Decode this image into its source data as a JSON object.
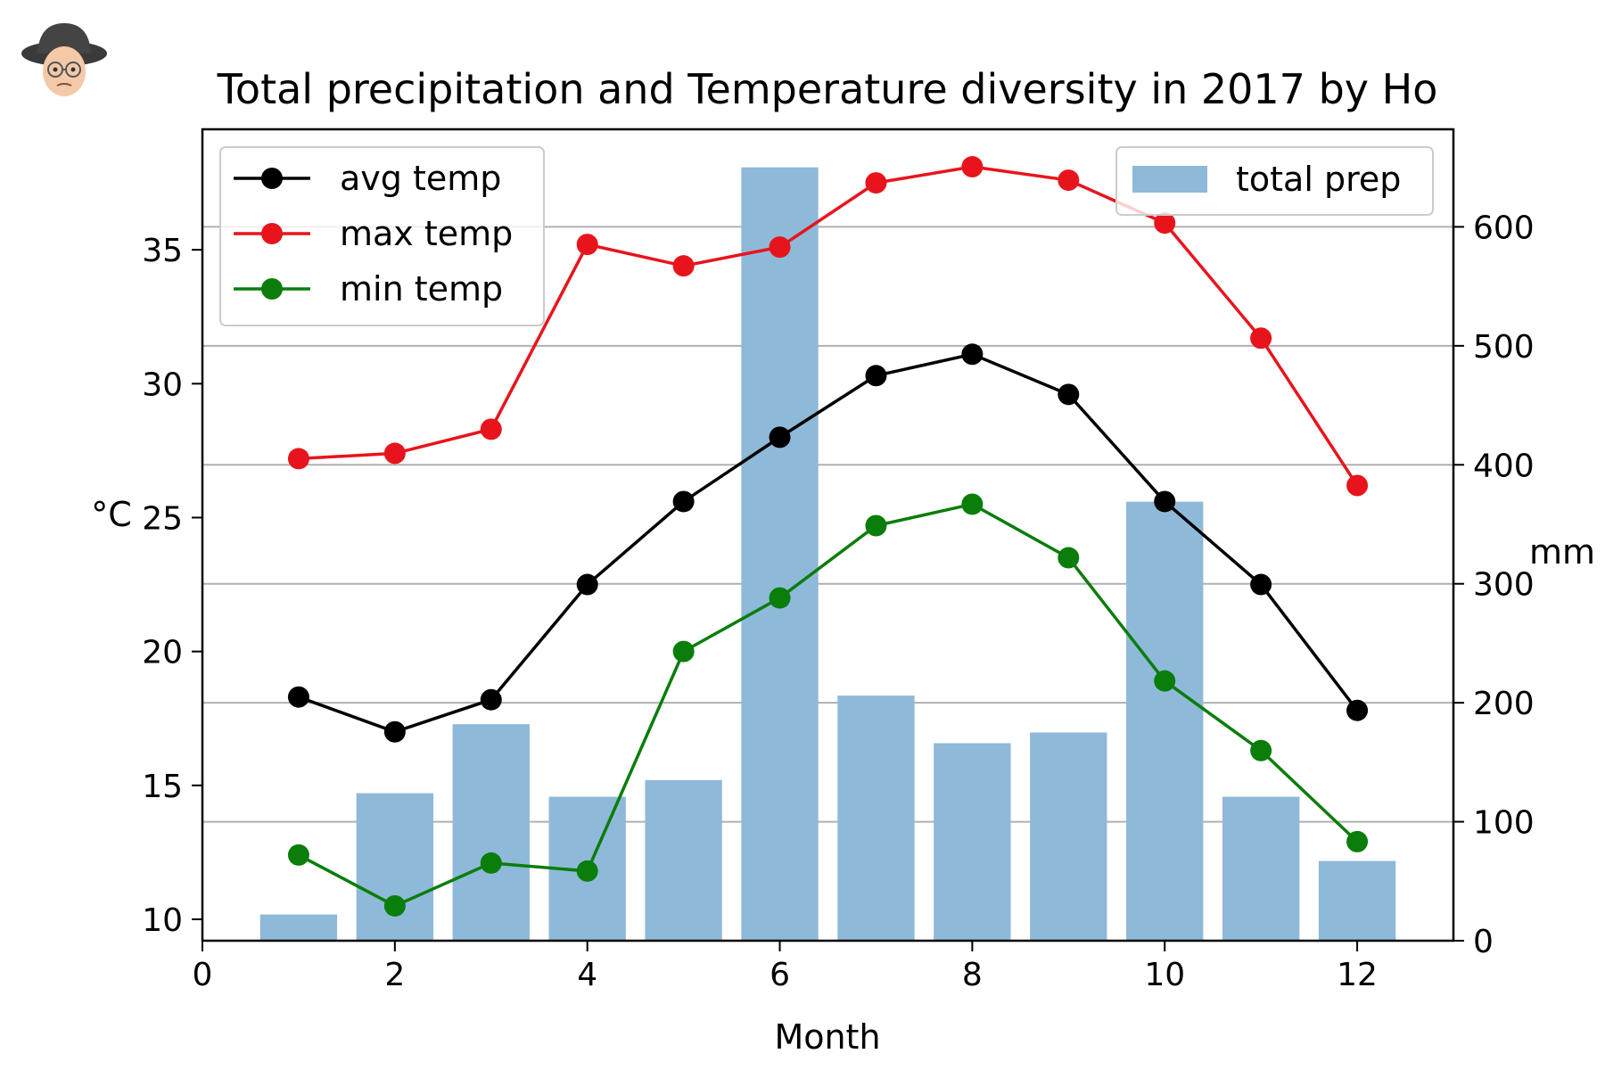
{
  "chart_data": {
    "type": "bar+line",
    "title": "Total precipitation and Temperature diversity in 2017 by Ho",
    "xlabel": "Month",
    "ylabel_left": "°C",
    "ylabel_right": "mm",
    "xlim": [
      0,
      13
    ],
    "ylim_left": [
      9.2,
      39.5
    ],
    "ylim_right": [
      0,
      682
    ],
    "x_ticks": [
      0,
      2,
      4,
      6,
      8,
      10,
      12
    ],
    "y_left_ticks": [
      10,
      15,
      20,
      25,
      30,
      35
    ],
    "y_right_ticks": [
      0,
      100,
      200,
      300,
      400,
      500,
      600
    ],
    "grid": "right axis horizontal",
    "x": [
      1,
      2,
      3,
      4,
      5,
      6,
      7,
      8,
      9,
      10,
      11,
      12
    ],
    "bars": {
      "name": "total prep",
      "axis": "right",
      "color": "#8fb9d8",
      "values": [
        22,
        124,
        182,
        121,
        135,
        650,
        206,
        166,
        175,
        369,
        121,
        67
      ]
    },
    "series": [
      {
        "name": "avg temp",
        "axis": "left",
        "color": "#000000",
        "values": [
          18.3,
          17.0,
          18.2,
          22.5,
          25.6,
          28.0,
          30.3,
          31.1,
          29.6,
          25.6,
          22.5,
          17.8
        ]
      },
      {
        "name": "max temp",
        "axis": "left",
        "color": "#e8141c",
        "values": [
          27.2,
          27.4,
          28.3,
          35.2,
          34.4,
          35.1,
          37.5,
          38.1,
          37.6,
          36.0,
          31.7,
          26.2
        ]
      },
      {
        "name": "min temp",
        "axis": "left",
        "color": "#0a7d0a",
        "values": [
          12.4,
          10.5,
          12.1,
          11.8,
          20.0,
          22.0,
          24.7,
          25.5,
          23.5,
          18.9,
          16.3,
          12.9
        ]
      }
    ],
    "legend_lines_position": "upper-left",
    "legend_bars_position": "upper-right"
  }
}
